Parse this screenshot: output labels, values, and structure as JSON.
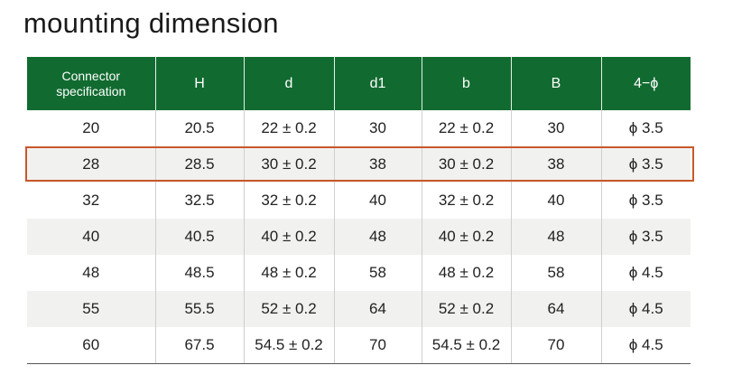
{
  "title": "mounting dimension",
  "table": {
    "header": [
      "Connector specification",
      "H",
      "d",
      "d1",
      "b",
      "B",
      "4−ϕ"
    ],
    "rows": [
      [
        "20",
        "20.5",
        "22 ± 0.2",
        "30",
        "22 ± 0.2",
        "30",
        "ϕ 3.5"
      ],
      [
        "28",
        "28.5",
        "30 ± 0.2",
        "38",
        "30 ± 0.2",
        "38",
        "ϕ 3.5"
      ],
      [
        "32",
        "32.5",
        "32 ± 0.2",
        "40",
        "32 ± 0.2",
        "40",
        "ϕ 3.5"
      ],
      [
        "40",
        "40.5",
        "40 ± 0.2",
        "48",
        "40 ± 0.2",
        "48",
        "ϕ 3.5"
      ],
      [
        "48",
        "48.5",
        "48 ± 0.2",
        "58",
        "48 ± 0.2",
        "58",
        "ϕ 4.5"
      ],
      [
        "55",
        "55.5",
        "52 ± 0.2",
        "64",
        "52 ± 0.2",
        "64",
        "ϕ 4.5"
      ],
      [
        "60",
        "67.5",
        "54.5 ± 0.2",
        "70",
        "54.5 ± 0.2",
        "70",
        "ϕ 4.5"
      ]
    ]
  }
}
